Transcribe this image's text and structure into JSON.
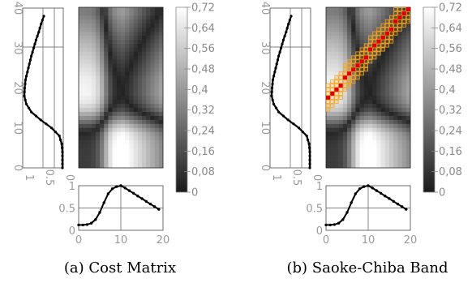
{
  "chart_data": [
    {
      "type": "heatmap",
      "caption": "(a) Cost Matrix",
      "matrix_size": [
        20,
        40
      ],
      "top_series": {
        "x": [
          0,
          1,
          2,
          3,
          4,
          5,
          6,
          7,
          8,
          9,
          10,
          11,
          12,
          13,
          14,
          15,
          16,
          17,
          18,
          19
        ],
        "y": [
          0.12,
          0.12,
          0.13,
          0.16,
          0.24,
          0.4,
          0.62,
          0.82,
          0.93,
          0.98,
          1.0,
          0.95,
          0.89,
          0.83,
          0.77,
          0.71,
          0.65,
          0.59,
          0.53,
          0.47
        ],
        "xlim": [
          0,
          20
        ],
        "ylim": [
          0,
          1
        ],
        "xticks": [
          "0",
          "10",
          "20"
        ],
        "yticks": [
          "0",
          "0.5",
          "1"
        ]
      },
      "left_series": {
        "t": [
          0,
          2,
          4,
          6,
          8,
          10,
          12,
          14,
          16,
          18,
          20,
          22,
          24,
          26,
          28,
          30,
          32,
          34,
          36,
          38
        ],
        "v": [
          0.02,
          0.02,
          0.02,
          0.04,
          0.1,
          0.3,
          0.58,
          0.82,
          0.95,
          1.0,
          0.99,
          0.97,
          0.92,
          0.87,
          0.82,
          0.76,
          0.7,
          0.63,
          0.57,
          0.5
        ],
        "tlim": [
          0,
          40
        ],
        "vlim": [
          0,
          1
        ],
        "yticks": [
          "0",
          "10",
          "20",
          "30",
          "40"
        ],
        "xticks": [
          "1",
          "0.5",
          "0"
        ]
      },
      "colorbar": {
        "min": 0,
        "max": 0.72,
        "ticks": [
          "0,72",
          "0,64",
          "0,56",
          "0,48",
          "0,4",
          "0,32",
          "0,24",
          "0,16",
          "0,08",
          "0"
        ]
      },
      "warping_path_shown": false
    },
    {
      "type": "heatmap",
      "caption": "(b) Saoke-Chiba Band",
      "matrix_size": [
        20,
        40
      ],
      "top_series": {
        "x": [
          0,
          1,
          2,
          3,
          4,
          5,
          6,
          7,
          8,
          9,
          10,
          11,
          12,
          13,
          14,
          15,
          16,
          17,
          18,
          19
        ],
        "y": [
          0.12,
          0.12,
          0.13,
          0.16,
          0.24,
          0.4,
          0.62,
          0.82,
          0.93,
          0.98,
          1.0,
          0.95,
          0.89,
          0.83,
          0.77,
          0.71,
          0.65,
          0.59,
          0.53,
          0.47
        ],
        "xlim": [
          0,
          20
        ],
        "ylim": [
          0,
          1
        ],
        "xticks": [
          "0",
          "10",
          "20"
        ],
        "yticks": [
          "0",
          "0.5",
          "1"
        ]
      },
      "left_series": {
        "t": [
          0,
          2,
          4,
          6,
          8,
          10,
          12,
          14,
          16,
          18,
          20,
          22,
          24,
          26,
          28,
          30,
          32,
          34,
          36,
          38
        ],
        "v": [
          0.02,
          0.02,
          0.02,
          0.04,
          0.1,
          0.3,
          0.58,
          0.82,
          0.95,
          1.0,
          0.99,
          0.97,
          0.92,
          0.87,
          0.82,
          0.76,
          0.7,
          0.63,
          0.57,
          0.5
        ],
        "tlim": [
          0,
          40
        ],
        "vlim": [
          0,
          1
        ],
        "yticks": [
          "0",
          "10",
          "20",
          "30",
          "40"
        ],
        "xticks": [
          "1",
          "0.5",
          "0"
        ]
      },
      "colorbar": {
        "min": 0,
        "max": 0.72,
        "ticks": [
          "0,72",
          "0,64",
          "0,56",
          "0,48",
          "0,4",
          "0,32",
          "0,24",
          "0,16",
          "0,08",
          "0"
        ]
      },
      "warping_path_shown": true,
      "band": {
        "start_row": 17,
        "end_row": 39,
        "half_width_cells": 3
      },
      "colors": {
        "path": "#e00000",
        "band": "#f5a623"
      }
    }
  ]
}
